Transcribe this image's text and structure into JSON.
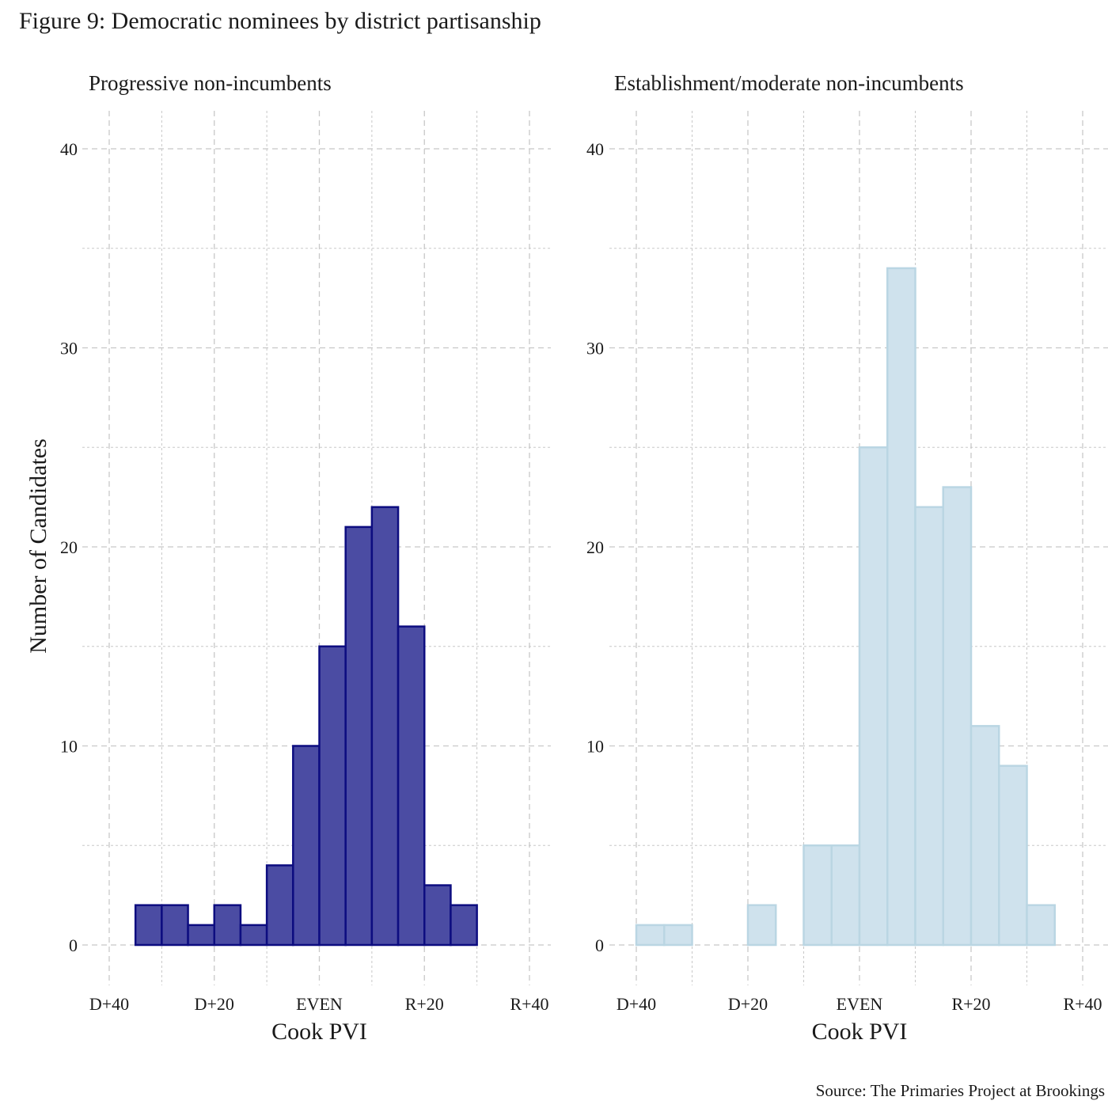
{
  "title": "Figure 9: Democratic nominees by district partisanship",
  "source": "Source: The Primaries Project at Brookings",
  "ylabel": "Number of Candidates",
  "colors": {
    "progressive_fill": "#4b4ca3",
    "progressive_stroke": "#0d0d80",
    "establishment_fill": "#cfe2ed",
    "establishment_stroke": "#bad6e3",
    "grid": "#c8c8c8"
  },
  "chart_data": [
    {
      "type": "bar",
      "title": "Progressive non-incumbents",
      "xlabel": "Cook PVI",
      "ylabel": "Number of Candidates",
      "bin_edges": [
        -40,
        -35,
        -30,
        -25,
        -20,
        -15,
        -10,
        -5,
        0,
        5,
        10,
        15,
        20,
        25,
        30,
        35,
        40
      ],
      "values": [
        0,
        2,
        2,
        1,
        2,
        1,
        4,
        10,
        15,
        21,
        22,
        16,
        3,
        2,
        0,
        0
      ],
      "xlim": [
        -40,
        40
      ],
      "ylim": [
        0,
        40
      ],
      "x_ticks": [
        -40,
        -20,
        0,
        20,
        40
      ],
      "x_tick_labels": [
        "D+40",
        "D+20",
        "EVEN",
        "R+20",
        "R+40"
      ],
      "y_ticks": [
        0,
        10,
        20,
        30,
        40
      ],
      "y_tick_labels": [
        "0",
        "10",
        "20",
        "30",
        "40"
      ],
      "grid": true
    },
    {
      "type": "bar",
      "title": "Establishment/moderate non-incumbents",
      "xlabel": "Cook PVI",
      "ylabel": "",
      "bin_edges": [
        -40,
        -35,
        -30,
        -25,
        -20,
        -15,
        -10,
        -5,
        0,
        5,
        10,
        15,
        20,
        25,
        30,
        35,
        40
      ],
      "values": [
        1,
        1,
        0,
        0,
        2,
        0,
        5,
        5,
        25,
        34,
        22,
        23,
        11,
        9,
        2,
        0
      ],
      "xlim": [
        -40,
        40
      ],
      "ylim": [
        0,
        40
      ],
      "x_ticks": [
        -40,
        -20,
        0,
        20,
        40
      ],
      "x_tick_labels": [
        "D+40",
        "D+20",
        "EVEN",
        "R+20",
        "R+40"
      ],
      "y_ticks": [
        0,
        10,
        20,
        30,
        40
      ],
      "y_tick_labels": [
        "0",
        "10",
        "20",
        "30",
        "40"
      ],
      "grid": true
    }
  ]
}
